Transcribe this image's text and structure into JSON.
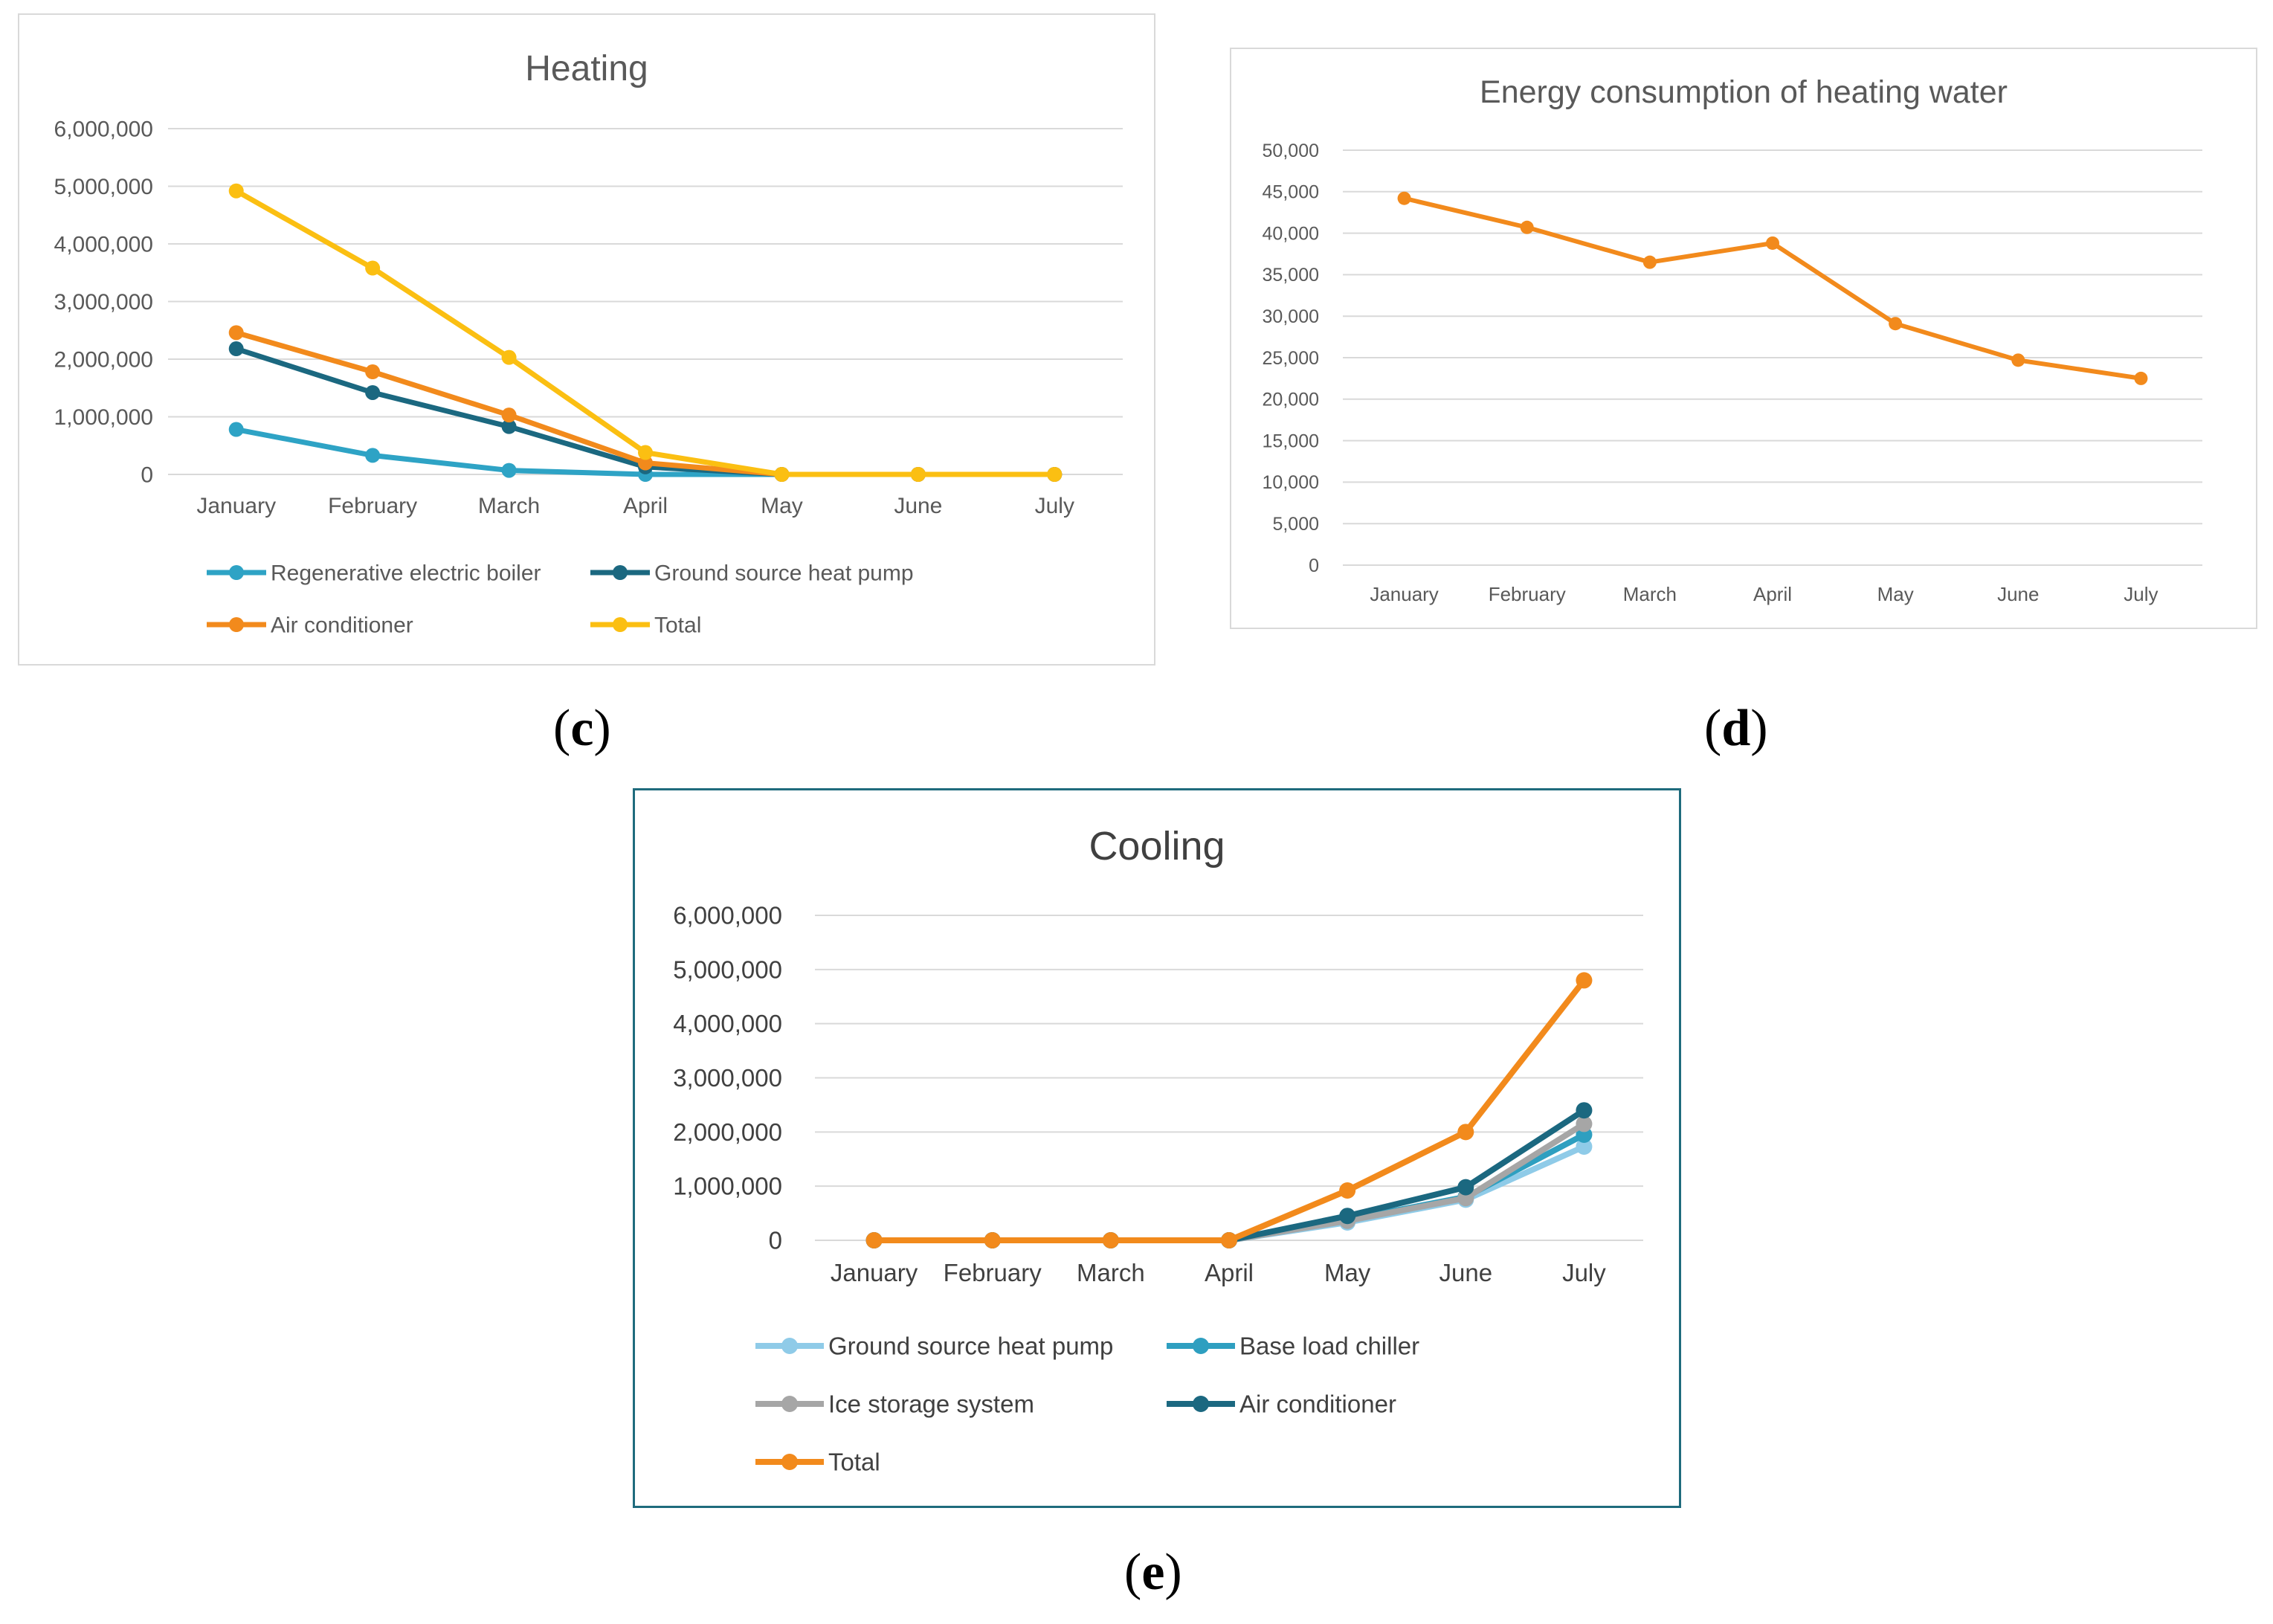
{
  "captions": {
    "c": "c",
    "d": "d",
    "e": "e"
  },
  "chart_data": [
    {
      "id": "c",
      "type": "line",
      "title": "Heating",
      "categories": [
        "January",
        "February",
        "March",
        "April",
        "May",
        "June",
        "July"
      ],
      "ylim": [
        0,
        6000000
      ],
      "yticks": [
        0,
        1000000,
        2000000,
        3000000,
        4000000,
        5000000,
        6000000
      ],
      "grid": true,
      "legend_position": "bottom",
      "series": [
        {
          "name": "Regenerative electric boiler",
          "color": "#2ea3c5",
          "values": [
            780000,
            330000,
            70000,
            0,
            0,
            0,
            0
          ]
        },
        {
          "name": "Ground source heat pump",
          "color": "#1b6880",
          "values": [
            2180000,
            1420000,
            830000,
            130000,
            0,
            0,
            0
          ]
        },
        {
          "name": "Air conditioner",
          "color": "#f28a1c",
          "values": [
            2460000,
            1780000,
            1030000,
            200000,
            0,
            0,
            0
          ]
        },
        {
          "name": "Total",
          "color": "#fbbf12",
          "values": [
            4920000,
            3580000,
            2030000,
            380000,
            0,
            0,
            0
          ]
        }
      ]
    },
    {
      "id": "d",
      "type": "line",
      "title": "Energy consumption of heating water",
      "categories": [
        "January",
        "February",
        "March",
        "April",
        "May",
        "June",
        "July"
      ],
      "ylim": [
        0,
        50000
      ],
      "yticks": [
        0,
        5000,
        10000,
        15000,
        20000,
        25000,
        30000,
        35000,
        40000,
        45000,
        50000
      ],
      "grid": true,
      "legend_position": "none",
      "series": [
        {
          "name": "Energy consumption of heating water",
          "color": "#f28a1c",
          "values": [
            44200,
            40700,
            36500,
            38800,
            29100,
            24700,
            22500
          ]
        }
      ]
    },
    {
      "id": "e",
      "type": "line",
      "title": "Cooling",
      "categories": [
        "January",
        "February",
        "March",
        "April",
        "May",
        "June",
        "July"
      ],
      "ylim": [
        0,
        6000000
      ],
      "yticks": [
        0,
        1000000,
        2000000,
        3000000,
        4000000,
        5000000,
        6000000
      ],
      "grid": true,
      "legend_position": "bottom",
      "series": [
        {
          "name": "Ground source heat pump",
          "color": "#8fcbe8",
          "values": [
            0,
            0,
            0,
            0,
            330000,
            750000,
            1730000
          ]
        },
        {
          "name": "Base load chiller",
          "color": "#2e9fc0",
          "values": [
            0,
            0,
            0,
            0,
            380000,
            800000,
            1950000
          ]
        },
        {
          "name": "Ice storage system",
          "color": "#a6a6a6",
          "values": [
            0,
            0,
            0,
            0,
            360000,
            780000,
            2150000
          ]
        },
        {
          "name": "Air conditioner",
          "color": "#1b6880",
          "values": [
            0,
            0,
            0,
            0,
            450000,
            980000,
            2400000
          ]
        },
        {
          "name": "Total",
          "color": "#f28a1c",
          "values": [
            0,
            0,
            0,
            0,
            920000,
            2000000,
            4800000
          ]
        }
      ]
    }
  ]
}
